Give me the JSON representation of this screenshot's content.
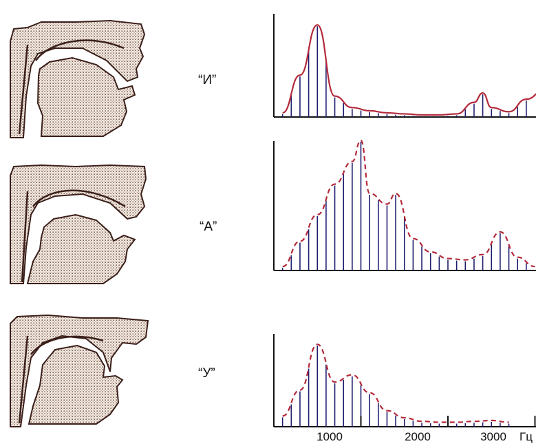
{
  "vowels": [
    {
      "label": "“И”",
      "envelope_style": "solid"
    },
    {
      "label": "“А”",
      "envelope_style": "dashed"
    },
    {
      "label": "“У”",
      "envelope_style": "dashed"
    }
  ],
  "axis": {
    "ticks": [
      "1000",
      "2000",
      "3000"
    ],
    "unit": "Гц"
  },
  "chart_data": [
    {
      "type": "line",
      "x": [
        100,
        300,
        500,
        700,
        900,
        1100,
        1300,
        1500,
        1700,
        1900,
        2100,
        2300,
        2400,
        2500,
        2700,
        2900,
        3100,
        3300
      ],
      "values": [
        4,
        40,
        88,
        20,
        9,
        6,
        4,
        3,
        2,
        2,
        3,
        14,
        23,
        9,
        5,
        17,
        25,
        18
      ]
    },
    {
      "type": "line",
      "x": [
        100,
        300,
        500,
        700,
        900,
        1000,
        1100,
        1300,
        1400,
        1600,
        1800,
        2000,
        2200,
        2400,
        2600,
        2800,
        3000
      ],
      "values": [
        3,
        22,
        42,
        65,
        82,
        98,
        58,
        50,
        58,
        24,
        14,
        9,
        8,
        12,
        29,
        10,
        3
      ]
    },
    {
      "type": "line",
      "x": [
        100,
        300,
        500,
        700,
        900,
        1100,
        1300,
        1500,
        1700,
        1900,
        2100,
        2300,
        2500,
        2700
      ],
      "values": [
        12,
        41,
        92,
        50,
        58,
        38,
        18,
        10,
        6,
        5,
        5,
        6,
        7,
        5
      ]
    }
  ],
  "colors": {
    "tissue": "#c9a98c",
    "outline": "#3b1f1a",
    "envelope": "#b3293a",
    "bars": "#1e1d6e",
    "axis": "#111111"
  }
}
